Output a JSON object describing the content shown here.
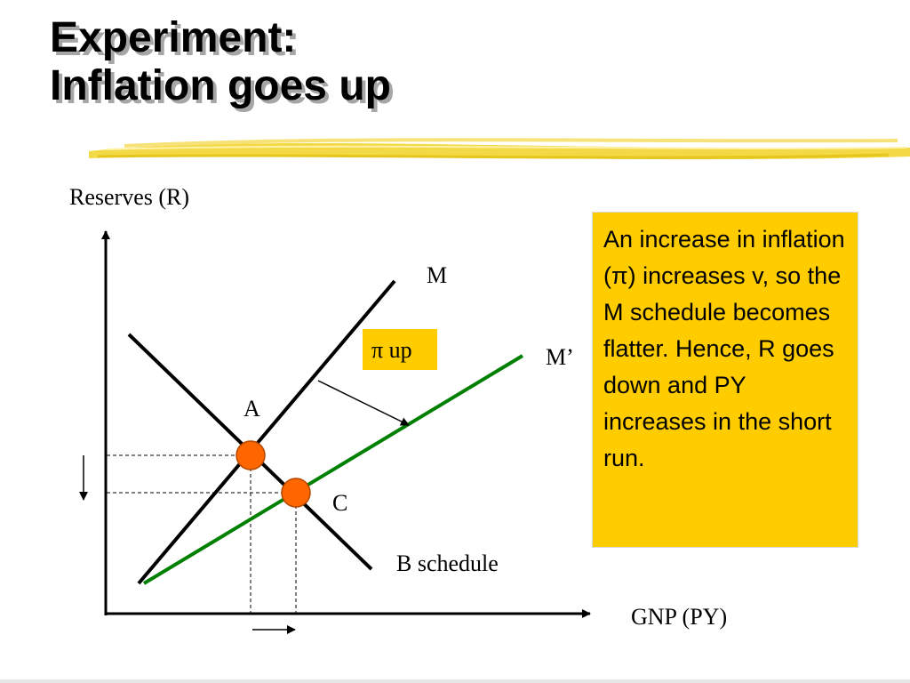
{
  "slide": {
    "title_line1": "Experiment:",
    "title_line2": "Inflation goes up"
  },
  "diagram": {
    "y_axis_label": "Reserves (R)",
    "x_axis_label": "GNP (PY)",
    "curve_m_label": "M",
    "curve_m_prime_label": "M’",
    "curve_b_label": "B schedule",
    "shift_box_label": "π up",
    "point_a_label": "A",
    "point_c_label": "C",
    "colors": {
      "m_line": "#000000",
      "m_prime_line": "#008000",
      "point_fill": "#ff6600",
      "shift_box": "#ffcc00",
      "title_underline": "#f2d531"
    }
  },
  "info_box": {
    "text": "An increase in inflation (π) increases v, so the M schedule becomes flatter. Hence, R goes down and PY increases in the short run.",
    "background": "#ffcc00"
  }
}
